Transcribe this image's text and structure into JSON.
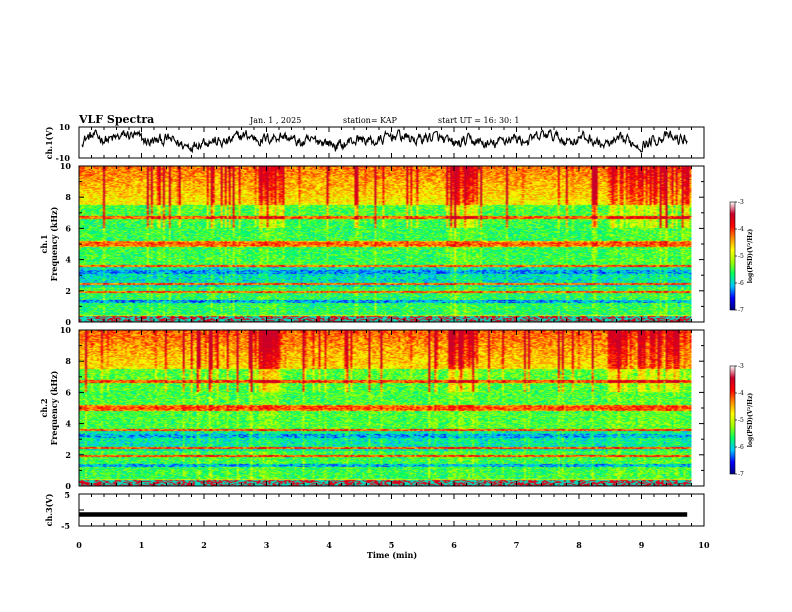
{
  "header": {
    "title": "VLF Spectra",
    "date": "Jan.  1 , 2025",
    "station": "station= KAP",
    "start": "start  UT  =   16: 30: 1"
  },
  "colors": {
    "waveform": "#000000",
    "spectrogram_stops": [
      "#00007f",
      "#0000ff",
      "#00c8ff",
      "#00ff60",
      "#a0ff00",
      "#ffff00",
      "#ff8c00",
      "#ff0000",
      "#c8002a",
      "#ffffff"
    ]
  },
  "chart_data": [
    {
      "id": "ch1-waveform",
      "type": "line",
      "ylabel": "ch.1(V)",
      "ylim": [
        -10,
        10
      ],
      "yticklabels": [
        "10",
        "-10"
      ],
      "xlim": [
        0,
        10
      ],
      "signal_range": [
        -6,
        8
      ]
    },
    {
      "id": "ch1-spectrogram",
      "type": "heatmap",
      "ylabel": "ch.1  Frequency  (kHz)",
      "ylim": [
        0,
        10
      ],
      "yticks": [
        0,
        2,
        4,
        6,
        8,
        10
      ],
      "xlim": [
        0,
        10
      ],
      "data_xrange": [
        0,
        9.8
      ],
      "colorbar": {
        "label": "log(PSD)(V²/Hz)",
        "range": [
          -7,
          -3
        ],
        "ticks": [
          "-3",
          "-4",
          "-5",
          "-6",
          "-7"
        ]
      }
    },
    {
      "id": "ch2-spectrogram",
      "type": "heatmap",
      "ylabel": "ch.2  Frequency  (kHz)",
      "ylim": [
        0,
        10
      ],
      "yticks": [
        0,
        2,
        4,
        6,
        8,
        10
      ],
      "xlim": [
        0,
        10
      ],
      "data_xrange": [
        0,
        9.8
      ],
      "colorbar": {
        "label": "log(PSD)(V²/Hz)",
        "range": [
          -7,
          -3
        ],
        "ticks": [
          "-3",
          "-4",
          "-5",
          "-6",
          "-7"
        ]
      }
    },
    {
      "id": "ch3-waveform",
      "type": "line",
      "ylabel": "ch.3(V)",
      "ylim": [
        -5,
        5
      ],
      "yticklabels": [
        "5",
        "-5"
      ],
      "xlim": [
        0,
        10
      ],
      "signal_level": -1.4
    }
  ],
  "xaxis": {
    "label": "Time  (min)",
    "ticklabels": [
      "0",
      "1",
      "2",
      "3",
      "4",
      "5",
      "6",
      "7",
      "8",
      "9",
      "10"
    ]
  },
  "ylabels": {
    "ch1_wave": "ch.1(V)",
    "ch1_spec_a": "ch.1",
    "ch1_spec_b": "Frequency  (kHz)",
    "ch2_spec_a": "ch.2",
    "ch2_spec_b": "Frequency  (kHz)",
    "ch3_wave": "ch.3(V)"
  },
  "ticks": {
    "ch1_wave_top": "10",
    "ch1_wave_bot": "-10",
    "ch3_wave_top": "5",
    "ch3_wave_bot": "-5",
    "spec_y": [
      "0",
      "2",
      "4",
      "6",
      "8",
      "10"
    ]
  }
}
